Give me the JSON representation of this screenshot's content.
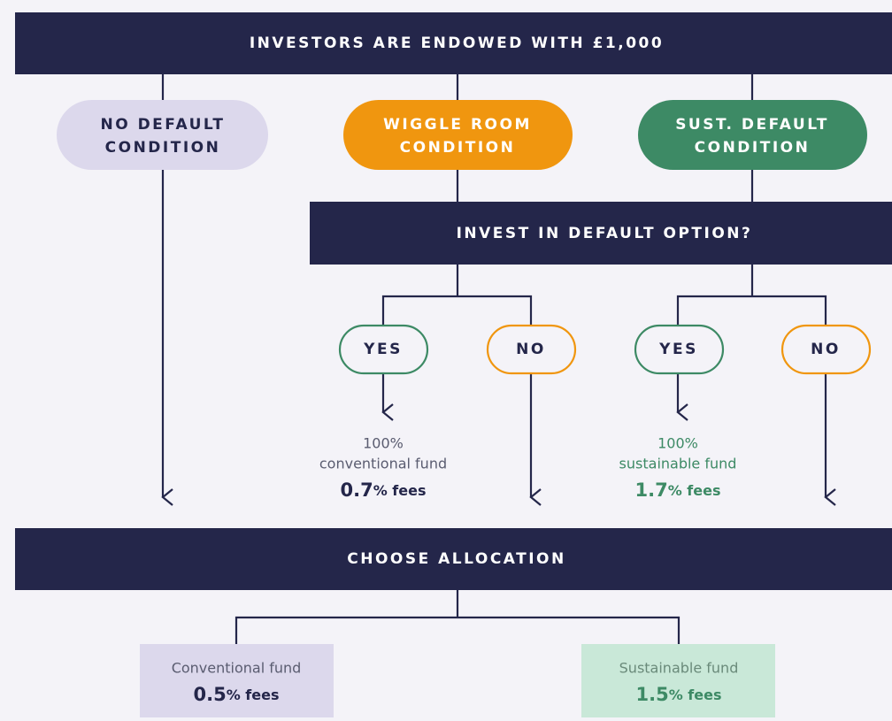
{
  "header": {
    "title": "INVESTORS ARE ENDOWED WITH £1,000"
  },
  "conditions": [
    {
      "lines": [
        "NO DEFAULT",
        "CONDITION"
      ]
    },
    {
      "lines": [
        "WIGGLE ROOM",
        "CONDITION"
      ]
    },
    {
      "lines": [
        "SUST. DEFAULT",
        "CONDITION"
      ]
    }
  ],
  "question": {
    "title": "INVEST IN DEFAULT OPTION?"
  },
  "answers": [
    "YES",
    "NO",
    "YES",
    "NO"
  ],
  "defaults": [
    {
      "share": "100%",
      "fund": "conventional fund",
      "fee_value": "0.7",
      "fee_unit": "% fees"
    },
    {
      "share": "100%",
      "fund": "sustainable fund",
      "fee_value": "1.7",
      "fee_unit": "% fees"
    }
  ],
  "allocation": {
    "title": "CHOOSE ALLOCATION"
  },
  "funds": [
    {
      "name": "Conventional fund",
      "fee_value": "0.5",
      "fee_unit": "% fees"
    },
    {
      "name": "Sustainable fund",
      "fee_value": "1.5",
      "fee_unit": "% fees"
    }
  ]
}
